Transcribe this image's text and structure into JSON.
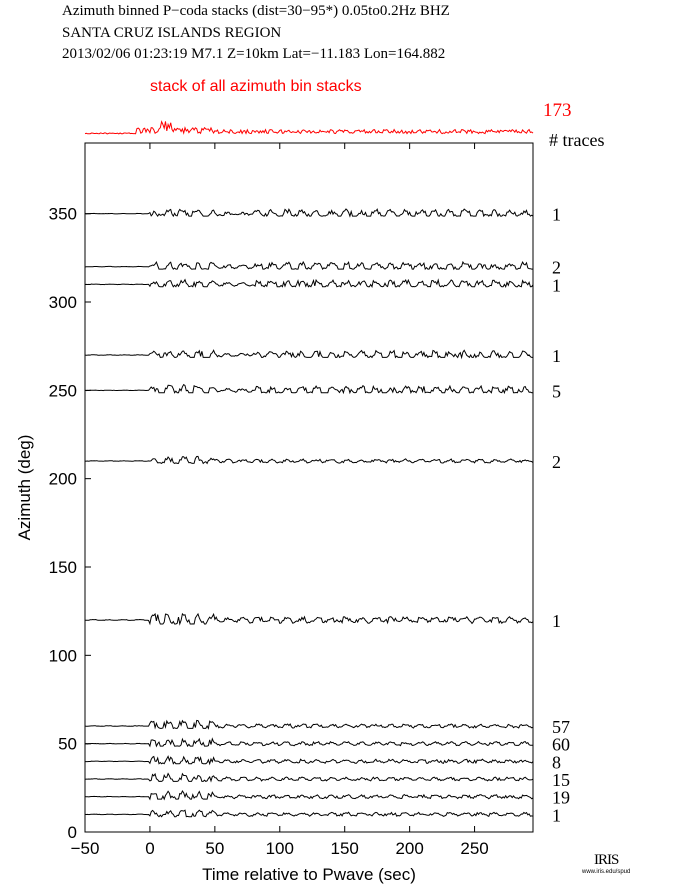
{
  "header": {
    "line1": "Azimuth binned P−coda stacks (dist=30−95*)  0.05to0.2Hz  BHZ",
    "line2": "SANTA CRUZ ISLANDS REGION",
    "line3": "2013/02/06  01:23:19  M7.1  Z=10km Lat=−11.183 Lon=164.882"
  },
  "logo": {
    "text": "IRIS",
    "url": "www.iris.edu/spud"
  },
  "chart_data": {
    "type": "line",
    "xlabel": "Time relative to Pwave (sec)",
    "ylabel": "Azimuth (deg)",
    "xlim": [
      -50,
      295
    ],
    "ylim": [
      0,
      390
    ],
    "xticks": [
      -50,
      0,
      50,
      100,
      150,
      200,
      250
    ],
    "yticks": [
      0,
      50,
      100,
      150,
      200,
      250,
      300,
      350
    ],
    "grid": false,
    "stack": {
      "label": "stack of all azimuth bin stacks",
      "count": "173",
      "color": "#ff0000"
    },
    "count_header": "# traces",
    "trace_color": "#000000",
    "series": [
      {
        "azimuth": 350,
        "traces": "1"
      },
      {
        "azimuth": 320,
        "traces": "2"
      },
      {
        "azimuth": 310,
        "traces": "1"
      },
      {
        "azimuth": 270,
        "traces": "1"
      },
      {
        "azimuth": 250,
        "traces": "5"
      },
      {
        "azimuth": 210,
        "traces": "2"
      },
      {
        "azimuth": 120,
        "traces": "1"
      },
      {
        "azimuth": 60,
        "traces": "57"
      },
      {
        "azimuth": 50,
        "traces": "60"
      },
      {
        "azimuth": 40,
        "traces": "8"
      },
      {
        "azimuth": 30,
        "traces": "15"
      },
      {
        "azimuth": 20,
        "traces": "19"
      },
      {
        "azimuth": 10,
        "traces": "1"
      }
    ]
  }
}
